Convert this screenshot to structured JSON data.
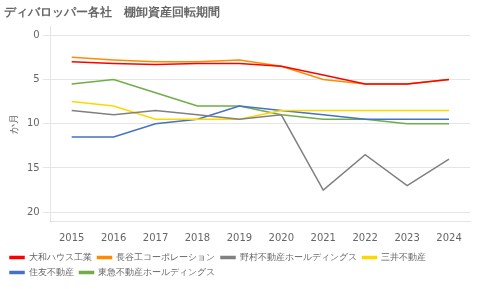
{
  "chart_data": {
    "type": "line",
    "title": "ディバロッパー各社　棚卸資産回転期間",
    "ylabel": "か月",
    "x": [
      2015,
      2016,
      2017,
      2018,
      2019,
      2020,
      2021,
      2022,
      2023,
      2024
    ],
    "series": [
      {
        "name": "大和ハウス工業",
        "color": "#FF0000",
        "values": [
          3.0,
          3.2,
          3.3,
          3.2,
          3.2,
          3.5,
          4.5,
          5.5,
          5.5,
          5.0
        ]
      },
      {
        "name": "長谷工コーポレーション",
        "color": "#FF8C00",
        "values": [
          2.5,
          2.8,
          3.0,
          3.0,
          2.8,
          3.5,
          5.0,
          5.5,
          5.5,
          5.0
        ]
      },
      {
        "name": "野村不動産ホールディングス",
        "color": "#808080",
        "values": [
          8.5,
          9.0,
          8.5,
          9.0,
          9.5,
          9.0,
          17.5,
          13.5,
          17.0,
          14.0
        ]
      },
      {
        "name": "三井不動産",
        "color": "#FFD700",
        "values": [
          7.5,
          8.0,
          9.5,
          9.5,
          9.5,
          8.5,
          8.5,
          8.5,
          8.5,
          8.5
        ]
      },
      {
        "name": "住友不動産",
        "color": "#4472C4",
        "values": [
          11.5,
          11.5,
          10.0,
          9.5,
          8.0,
          8.5,
          9.0,
          9.5,
          9.5,
          9.5
        ]
      },
      {
        "name": "東急不動産ホールディングス",
        "color": "#70AD47",
        "values": [
          5.5,
          5.0,
          6.5,
          8.0,
          8.0,
          9.0,
          9.5,
          9.5,
          10.0,
          10.0
        ]
      }
    ],
    "xlim": [
      2014.5,
      2024.5
    ],
    "xticks": [
      2015,
      2016,
      2017,
      2018,
      2019,
      2020,
      2021,
      2022,
      2023,
      2024
    ],
    "ylim": [
      21,
      -1
    ],
    "yticks": [
      0,
      5,
      10,
      15,
      20
    ],
    "grid": true,
    "legend": "bottom"
  }
}
